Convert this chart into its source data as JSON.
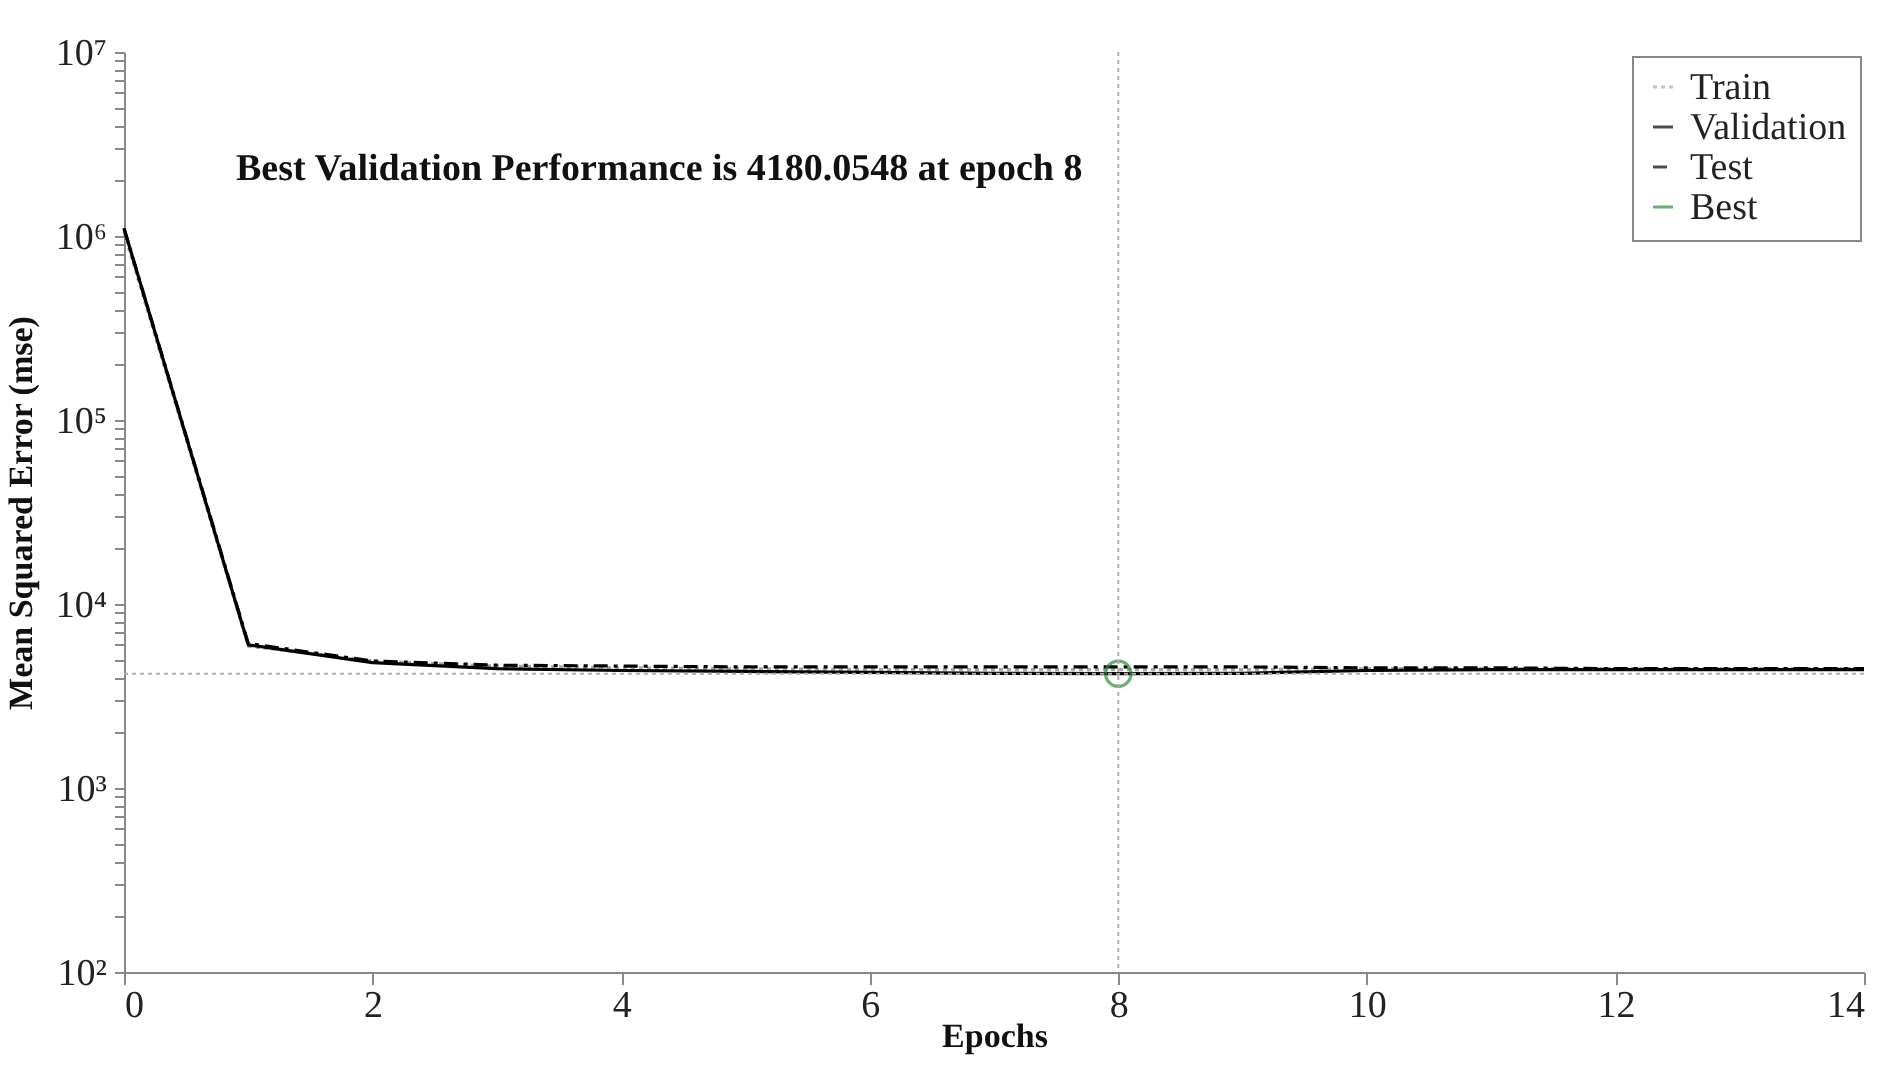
{
  "chart_data": {
    "type": "line",
    "title": "Best Validation Performance is 4180.0548 at epoch 8",
    "xlabel": "Epochs",
    "ylabel": "Mean Squared Error  (mse)",
    "x": [
      0,
      1,
      2,
      3,
      4,
      5,
      6,
      7,
      8,
      9,
      10,
      11,
      12,
      13,
      14
    ],
    "series": [
      {
        "name": "Train",
        "color": "#a8a8a8",
        "line_style": "dotted",
        "values": [
          1050000,
          5900,
          4900,
          4600,
          4500,
          4450,
          4400,
          4400,
          4400,
          4400,
          4450,
          4450,
          4450,
          4450,
          4450
        ]
      },
      {
        "name": "Validation",
        "color": "#000000",
        "line_style": "solid",
        "values": [
          1100000,
          6000,
          4800,
          4450,
          4350,
          4300,
          4250,
          4200,
          4180.0548,
          4200,
          4350,
          4400,
          4400,
          4400,
          4400
        ]
      },
      {
        "name": "Test",
        "color": "#000000",
        "line_style": "dashed",
        "values": [
          1100000,
          6100,
          4900,
          4650,
          4600,
          4550,
          4550,
          4550,
          4550,
          4550,
          4500,
          4500,
          4450,
          4450,
          4450
        ]
      },
      {
        "name": "Best",
        "type": "scatter",
        "marker": "circle",
        "color": "#2e8b3a",
        "x": [
          8
        ],
        "values": [
          4180.0548
        ]
      }
    ],
    "ref_lines": [
      {
        "axis": "x",
        "value": 8,
        "color": "#b0b0b0",
        "line_style": "dotted"
      },
      {
        "axis": "y",
        "value": 4180.0548,
        "color": "#b0b0b0",
        "line_style": "dotted"
      }
    ],
    "xlim": [
      0,
      14
    ],
    "xticks": [
      0,
      2,
      4,
      6,
      8,
      10,
      12,
      14
    ],
    "ylim": [
      100,
      10000000
    ],
    "log": true,
    "yticks": [
      {
        "value": 100,
        "label": "10²"
      },
      {
        "value": 200,
        "label": null
      },
      {
        "value": 300,
        "label": null
      },
      {
        "value": 400,
        "label": null
      },
      {
        "value": 500,
        "label": null
      },
      {
        "value": 600,
        "label": null
      },
      {
        "value": 700,
        "label": null
      },
      {
        "value": 800,
        "label": null
      },
      {
        "value": 900,
        "label": null
      },
      {
        "value": 1000,
        "label": "10³"
      },
      {
        "value": 2000,
        "label": null
      },
      {
        "value": 3000,
        "label": null
      },
      {
        "value": 4000,
        "label": null
      },
      {
        "value": 5000,
        "label": null
      },
      {
        "value": 6000,
        "label": null
      },
      {
        "value": 7000,
        "label": null
      },
      {
        "value": 8000,
        "label": null
      },
      {
        "value": 9000,
        "label": null
      },
      {
        "value": 10000,
        "label": "10⁴"
      },
      {
        "value": 20000,
        "label": null
      },
      {
        "value": 30000,
        "label": null
      },
      {
        "value": 40000,
        "label": null
      },
      {
        "value": 50000,
        "label": null
      },
      {
        "value": 60000,
        "label": null
      },
      {
        "value": 70000,
        "label": null
      },
      {
        "value": 80000,
        "label": null
      },
      {
        "value": 90000,
        "label": null
      },
      {
        "value": 100000,
        "label": "10⁵"
      },
      {
        "value": 200000,
        "label": null
      },
      {
        "value": 300000,
        "label": null
      },
      {
        "value": 400000,
        "label": null
      },
      {
        "value": 500000,
        "label": null
      },
      {
        "value": 600000,
        "label": null
      },
      {
        "value": 700000,
        "label": null
      },
      {
        "value": 800000,
        "label": null
      },
      {
        "value": 900000,
        "label": null
      },
      {
        "value": 1000000,
        "label": "10⁶"
      },
      {
        "value": 2000000,
        "label": null
      },
      {
        "value": 3000000,
        "label": null
      },
      {
        "value": 4000000,
        "label": null
      },
      {
        "value": 5000000,
        "label": null
      },
      {
        "value": 6000000,
        "label": null
      },
      {
        "value": 7000000,
        "label": null
      },
      {
        "value": 8000000,
        "label": null
      },
      {
        "value": 9000000,
        "label": null
      },
      {
        "value": 10000000,
        "label": "10⁷"
      }
    ],
    "grid": false,
    "legend": "top right"
  }
}
